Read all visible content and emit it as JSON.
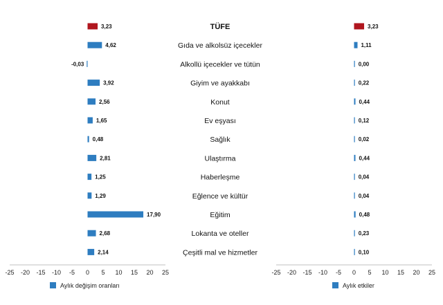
{
  "chart_data": [
    {
      "type": "bar",
      "orientation": "horizontal",
      "categories": [
        "TÜFE",
        "Gıda ve alkolsüz içecekler",
        "Alkollü içecekler ve tütün",
        "Giyim ve ayakkabı",
        "Konut",
        "Ev eşyası",
        "Sağlık",
        "Ulaştırma",
        "Haberleşme",
        "Eğlence ve kültür",
        "Eğitim",
        "Lokanta ve oteller",
        "Çeşitli mal ve hizmetler"
      ],
      "value_labels": [
        "3,23",
        "4,62",
        "-0,03",
        "3,92",
        "2,56",
        "1,65",
        "0,48",
        "2,81",
        "1,25",
        "1,29",
        "17,90",
        "2,68",
        "2,14"
      ],
      "series": [
        {
          "name": "Aylık değişim oranları",
          "values": [
            3.23,
            4.62,
            -0.03,
            3.92,
            2.56,
            1.65,
            0.48,
            2.81,
            1.25,
            1.29,
            17.9,
            2.68,
            2.14
          ]
        }
      ],
      "xlim": [
        -25,
        25
      ],
      "xticks": [
        "-25",
        "-20",
        "-15",
        "-10",
        "-5",
        "0",
        "5",
        "10",
        "15",
        "20",
        "25"
      ],
      "highlight_category": "TÜFE",
      "legend_position": "bottom-left",
      "grid": false
    },
    {
      "type": "bar",
      "orientation": "horizontal",
      "categories": [
        "TÜFE",
        "Gıda ve alkolsüz içecekler",
        "Alkollü içecekler ve tütün",
        "Giyim ve ayakkabı",
        "Konut",
        "Ev eşyası",
        "Sağlık",
        "Ulaştırma",
        "Haberleşme",
        "Eğlence ve kültür",
        "Eğitim",
        "Lokanta ve oteller",
        "Çeşitli mal ve hizmetler"
      ],
      "value_labels": [
        "3,23",
        "1,11",
        "0,00",
        "0,22",
        "0,44",
        "0,12",
        "0,02",
        "0,44",
        "0,04",
        "0,04",
        "0,48",
        "0,23",
        "0,10"
      ],
      "series": [
        {
          "name": "Aylık etkiler",
          "values": [
            3.23,
            1.11,
            0.0,
            0.22,
            0.44,
            0.12,
            0.02,
            0.44,
            0.04,
            0.04,
            0.48,
            0.23,
            0.1
          ]
        }
      ],
      "xlim": [
        -25,
        25
      ],
      "xticks": [
        "-25",
        "-20",
        "-15",
        "-10",
        "-5",
        "0",
        "5",
        "10",
        "15",
        "20",
        "25"
      ],
      "highlight_category": "TÜFE",
      "legend_position": "bottom-left",
      "grid": false
    }
  ],
  "colors": {
    "bar": "#2e7dc0",
    "highlight": "#b0161e",
    "axis": "#bfbfbf"
  }
}
